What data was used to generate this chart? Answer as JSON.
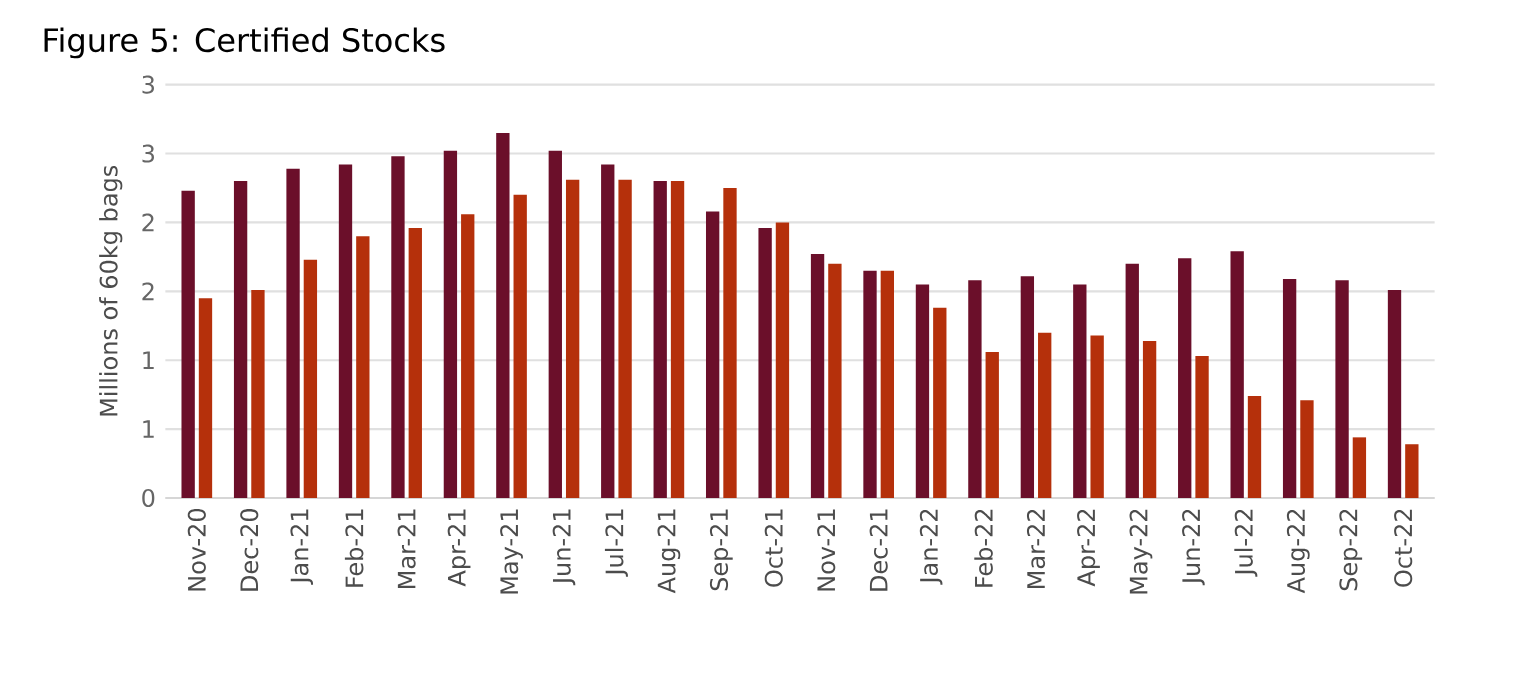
{
  "chart_data": {
    "type": "bar",
    "title": "Figure 5: Certified Stocks",
    "ylabel": "Millions of 60kg bags",
    "categories": [
      "Nov-20",
      "Dec-20",
      "Jan-21",
      "Feb-21",
      "Mar-21",
      "Apr-21",
      "May-21",
      "Jun-21",
      "Jul-21",
      "Aug-21",
      "Sep-21",
      "Oct-21",
      "Nov-21",
      "Dec-21",
      "Jan-22",
      "Feb-22",
      "Mar-22",
      "Apr-22",
      "May-22",
      "Jun-22",
      "Jul-22",
      "Aug-22",
      "Sep-22",
      "Oct-22"
    ],
    "series": [
      {
        "color": "#6b0f2a",
        "values": [
          2.23,
          2.3,
          2.39,
          2.42,
          2.48,
          2.52,
          2.65,
          2.52,
          2.42,
          2.3,
          2.08,
          1.96,
          1.77,
          1.65,
          1.55,
          1.58,
          1.61,
          1.55,
          1.7,
          1.74,
          1.79,
          1.59,
          1.58,
          1.51
        ]
      },
      {
        "color": "#b5300b",
        "values": [
          1.45,
          1.51,
          1.73,
          1.9,
          1.96,
          2.06,
          2.2,
          2.31,
          2.31,
          2.3,
          2.25,
          2.0,
          1.7,
          1.65,
          1.38,
          1.06,
          1.2,
          1.18,
          1.14,
          1.03,
          0.74,
          0.71,
          0.44,
          0.39
        ]
      }
    ],
    "ylim": [
      0,
      3
    ],
    "yticks": [
      0,
      {
        "value": 0.5,
        "label": "1"
      },
      1,
      {
        "value": 1.5,
        "label": "2"
      },
      2,
      {
        "value": 2.5,
        "label": "3"
      },
      3
    ],
    "grid": "y"
  }
}
